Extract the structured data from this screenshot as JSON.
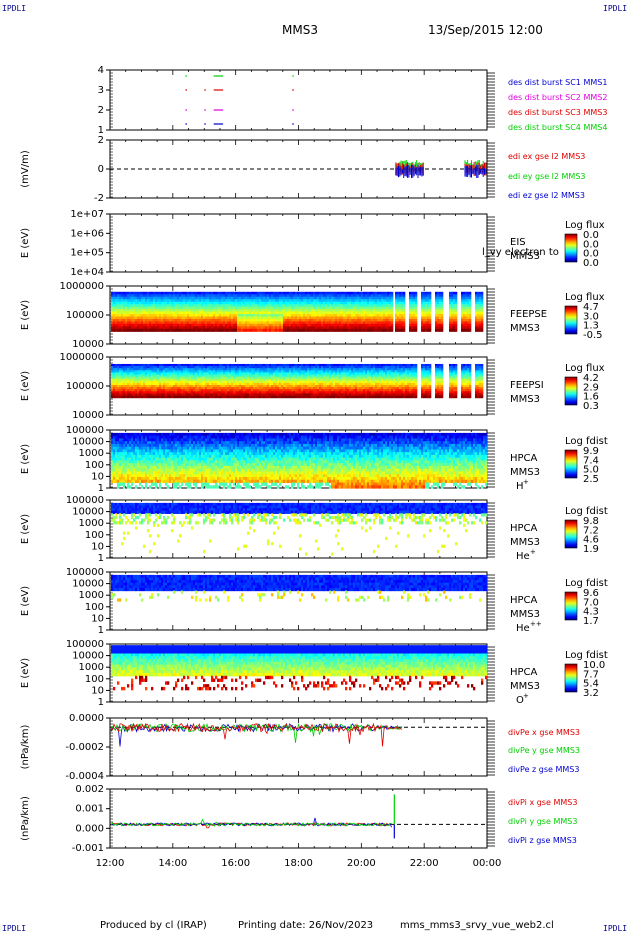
{
  "header": {
    "corner_tl": "IPDLI",
    "corner_tr": "IPDLI",
    "corner_bl": "IPDLI",
    "corner_br": "IPDLI",
    "spacecraft": "MMS3",
    "datetime": "13/Sep/2015 12:00"
  },
  "footer": {
    "produced": "Produced by cl (IRAP)",
    "printing": "Printing date: 26/Nov/2023",
    "file": "mms_mms3_srvy_vue_web2.cl"
  },
  "time_axis": {
    "ticks": [
      "12:00",
      "14:00",
      "16:00",
      "18:00",
      "20:00",
      "22:00",
      "00:00"
    ]
  },
  "colors": {
    "red": "#e00000",
    "green": "#00d000",
    "blue": "#0000d0",
    "magenta": "#e000e0",
    "axis": "#000000",
    "line_label_blue": "#00008b"
  },
  "panels": [
    {
      "id": "burst",
      "yticks": [
        "4",
        "3",
        "2",
        "1"
      ],
      "legend": [
        "des dist burst SC1 MMS1",
        "des dist burst SC2 MMS2",
        "des dist burst SC3 MMS3",
        "des dist burst SC4 MMS4"
      ]
    },
    {
      "id": "edi",
      "ylabel": "(mV/m)",
      "yticks": [
        "2",
        "0",
        "-2"
      ],
      "legend": [
        "edi ex gse l2 MMS3",
        "edi ey gse l2 MMS3",
        "edi ez gse l2 MMS3"
      ]
    },
    {
      "id": "eis",
      "ylabel": "E (eV)",
      "yticks": [
        "1e+07",
        "1e+06",
        "1e+05",
        "1e+04"
      ],
      "inst": "EIS",
      "inst2": "MMS3",
      "overlay": "l_vy electron to",
      "cb_title": "Log flux",
      "cb_vals": [
        "0.0",
        "0.0",
        "0.0",
        "0.0"
      ]
    },
    {
      "id": "feepse",
      "ylabel": "E (eV)",
      "yticks": [
        "1000000",
        "100000",
        "10000"
      ],
      "inst": "FEEPSE",
      "inst2": "MMS3",
      "cb_title": "Log flux",
      "cb_vals": [
        "4.7",
        "3.0",
        "1.3",
        "-0.5"
      ]
    },
    {
      "id": "feepsi",
      "ylabel": "E (eV)",
      "yticks": [
        "1000000",
        "100000",
        "10000"
      ],
      "inst": "FEEPSI",
      "inst2": "MMS3",
      "cb_title": "Log flux",
      "cb_vals": [
        "4.2",
        "2.9",
        "1.6",
        "0.3"
      ]
    },
    {
      "id": "hpca_h",
      "ylabel": "E (eV)",
      "yticks": [
        "100000",
        "10000",
        "1000",
        "100",
        "10",
        "1"
      ],
      "inst": "HPCA",
      "inst2": "MMS3",
      "species": "H",
      "charge": "+",
      "cb_title": "Log fdist",
      "cb_vals": [
        "9.9",
        "7.4",
        "5.0",
        "2.5"
      ]
    },
    {
      "id": "hpca_he",
      "ylabel": "E (eV)",
      "yticks": [
        "100000",
        "10000",
        "1000",
        "100",
        "10",
        "1"
      ],
      "inst": "HPCA",
      "inst2": "MMS3",
      "species": "He",
      "charge": "+",
      "cb_title": "Log fdist",
      "cb_vals": [
        "9.8",
        "7.2",
        "4.6",
        "1.9"
      ]
    },
    {
      "id": "hpca_he2",
      "ylabel": "E (eV)",
      "yticks": [
        "100000",
        "10000",
        "1000",
        "100",
        "10",
        "1"
      ],
      "inst": "HPCA",
      "inst2": "MMS3",
      "species": "He",
      "charge": "++",
      "cb_title": "Log fdist",
      "cb_vals": [
        "9.6",
        "7.0",
        "4.3",
        "1.7"
      ]
    },
    {
      "id": "hpca_o",
      "ylabel": "E (eV)",
      "yticks": [
        "100000",
        "10000",
        "1000",
        "100",
        "10",
        "1"
      ],
      "inst": "HPCA",
      "inst2": "MMS3",
      "species": "O",
      "charge": "+",
      "cb_title": "Log fdist",
      "cb_vals": [
        "10.0",
        "7.7",
        "5.4",
        "3.2"
      ]
    },
    {
      "id": "divpe",
      "ylabel": "(nPa/km)",
      "yticks": [
        "0.0000",
        "-0.0002",
        "-0.0004"
      ],
      "legend": [
        "divPe x gse MMS3",
        "divPe y gse MMS3",
        "divPe z gse MMS3"
      ]
    },
    {
      "id": "divpi",
      "ylabel": "(nPa/km)",
      "yticks": [
        "0.002",
        "0.001",
        "0.000",
        "-0.001"
      ],
      "legend": [
        "divPi x gse MMS3",
        "divPi y gse MMS3",
        "divPi z gse MMS3"
      ]
    }
  ],
  "chart_data": {
    "type": "line",
    "x_range": [
      "12:00",
      "00:00"
    ],
    "burst_intervals": {
      "mms1": [
        [
          14.4,
          14.45
        ],
        [
          15.3,
          15.6
        ],
        [
          17.8,
          17.85
        ]
      ],
      "mms2": [
        [
          14.4,
          14.45
        ],
        [
          15.0,
          15.05
        ],
        [
          15.3,
          15.6
        ],
        [
          17.8,
          17.85
        ]
      ],
      "mms3": [
        [
          14.4,
          14.45
        ],
        [
          15.0,
          15.05
        ],
        [
          15.3,
          15.6
        ],
        [
          17.8,
          17.85
        ]
      ],
      "mms4": [
        [
          14.4,
          14.45
        ],
        [
          15.0,
          15.05
        ],
        [
          15.3,
          15.6
        ],
        [
          17.8,
          17.85
        ]
      ]
    },
    "edi_intervals": [
      [
        21.1,
        22.0
      ],
      [
        23.3,
        24.0
      ]
    ],
    "divpe_ylim": [
      -0.0005,
      0.0001
    ],
    "divpi_ylim": [
      -0.0015,
      0.0025
    ]
  }
}
